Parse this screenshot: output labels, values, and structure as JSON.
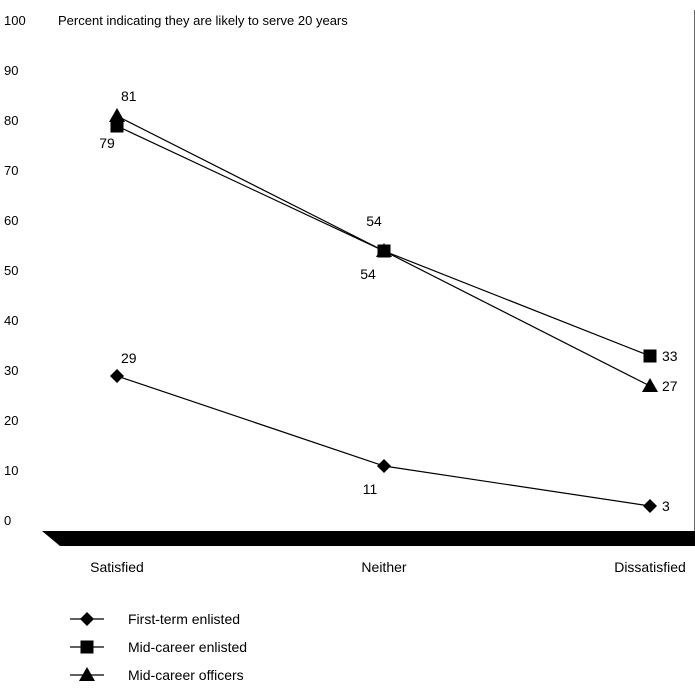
{
  "chart_data": {
    "type": "line",
    "title": "Percent indicating they are likely to serve 20 years",
    "categories": [
      "Satisfied",
      "Neither",
      "Dissatisfied"
    ],
    "ylim": [
      0,
      100
    ],
    "yticks": [
      "0",
      "10",
      "20",
      "30",
      "40",
      "50",
      "60",
      "70",
      "80",
      "90",
      "100"
    ],
    "grid": false,
    "legend_position": "bottom-left",
    "series": [
      {
        "name": "First-term enlisted",
        "marker": "diamond",
        "values": [
          29,
          11,
          3
        ],
        "labels": [
          "29",
          "11",
          "3"
        ]
      },
      {
        "name": "Mid-career enlisted",
        "marker": "square",
        "values": [
          79,
          54,
          33
        ],
        "labels": [
          "79",
          "54",
          "33"
        ]
      },
      {
        "name": "Mid-career officers",
        "marker": "triangle",
        "values": [
          81,
          54,
          27
        ],
        "labels": [
          "81",
          "54",
          "27"
        ]
      }
    ],
    "colors": {
      "line": "#000000",
      "floor": "#000000"
    }
  }
}
